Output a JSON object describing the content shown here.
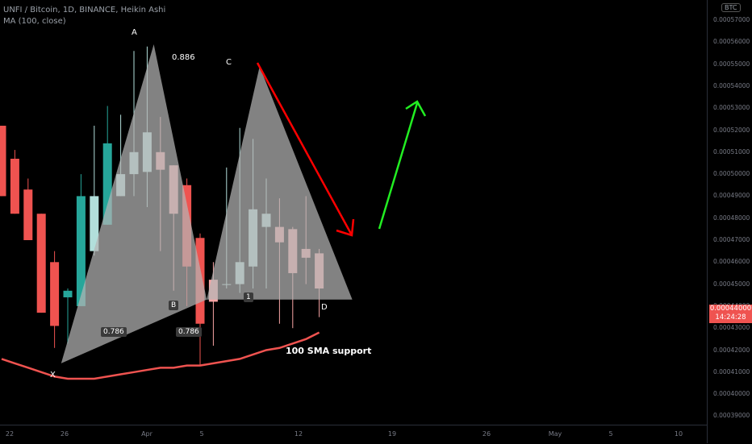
{
  "header": {
    "title": "UNFI / Bitcoin, 1D, BINANCE, Heikin Ashi",
    "indicator": "MA (100, close)"
  },
  "currency_badge": "BTC",
  "price_label": {
    "price": "0.00044000",
    "countdown": "14:24:28"
  },
  "annotations": {
    "A": "A",
    "B": "B",
    "C": "C",
    "D": "D",
    "X": "X",
    "ratio_886": "0.886",
    "ratio_786_xb": "0.786",
    "ratio_786_bd": "0.786",
    "point_1": "1",
    "sma_note": "100 SMA support"
  },
  "colors": {
    "background": "#000000",
    "candle_up": "#26a69a",
    "candle_up_light": "#b2dfdb",
    "candle_down": "#ef5350",
    "candle_down_light": "#f8a5a5",
    "pattern_fill": "#b4b4b4",
    "sma": "#ef5350",
    "arrow_down": "#ff0000",
    "arrow_up": "#22ee22"
  },
  "icons": [
    "arrow-down-icon",
    "arrow-up-icon"
  ],
  "chart_data": {
    "type": "candlestick",
    "style": "Heikin Ashi",
    "symbol": "UNFI / Bitcoin",
    "interval": "1D",
    "exchange": "BINANCE",
    "y_ticks": [
      "0.00057000",
      "0.00056000",
      "0.00055000",
      "0.00054000",
      "0.00053000",
      "0.00052000",
      "0.00051000",
      "0.00050000",
      "0.00049000",
      "0.00048000",
      "0.00047000",
      "0.00046000",
      "0.00045000",
      "0.00044000",
      "0.00043000",
      "0.00042000",
      "0.00041000",
      "0.00040000",
      "0.00039000"
    ],
    "x_ticks": [
      "22",
      "26",
      "Apr",
      "5",
      "12",
      "19",
      "26",
      "May",
      "5",
      "10"
    ],
    "ylim": [
      0.000387,
      0.000577
    ],
    "candles": [
      {
        "open": 0.000522,
        "high": 0.000522,
        "low": 0.00049,
        "close": 0.00049,
        "dir": "down"
      },
      {
        "open": 0.000507,
        "high": 0.000511,
        "low": 0.000482,
        "close": 0.000482,
        "dir": "down"
      },
      {
        "open": 0.000493,
        "high": 0.000498,
        "low": 0.00047,
        "close": 0.00047,
        "dir": "down"
      },
      {
        "open": 0.000482,
        "high": 0.000482,
        "low": 0.000437,
        "close": 0.000437,
        "dir": "down"
      },
      {
        "open": 0.00046,
        "high": 0.000465,
        "low": 0.000421,
        "close": 0.000431,
        "dir": "down"
      },
      {
        "open": 0.000444,
        "high": 0.000448,
        "low": 0.000423,
        "close": 0.000447,
        "dir": "up"
      },
      {
        "open": 0.00044,
        "high": 0.0005,
        "low": 0.00044,
        "close": 0.00049,
        "dir": "up"
      },
      {
        "open": 0.000465,
        "high": 0.000522,
        "low": 0.000463,
        "close": 0.00049,
        "dir": "up_light"
      },
      {
        "open": 0.000477,
        "high": 0.000531,
        "low": 0.000477,
        "close": 0.000514,
        "dir": "up"
      },
      {
        "open": 0.00049,
        "high": 0.000527,
        "low": 0.00049,
        "close": 0.0005,
        "dir": "up_light"
      },
      {
        "open": 0.0005,
        "high": 0.000556,
        "low": 0.00049,
        "close": 0.00051,
        "dir": "up_light"
      },
      {
        "open": 0.000501,
        "high": 0.000558,
        "low": 0.000485,
        "close": 0.000519,
        "dir": "up_light"
      },
      {
        "open": 0.00051,
        "high": 0.000526,
        "low": 0.000465,
        "close": 0.000502,
        "dir": "down_light"
      },
      {
        "open": 0.000504,
        "high": 0.000504,
        "low": 0.000447,
        "close": 0.000482,
        "dir": "down_light"
      },
      {
        "open": 0.000495,
        "high": 0.000498,
        "low": 0.00044,
        "close": 0.000458,
        "dir": "down"
      },
      {
        "open": 0.000471,
        "high": 0.000473,
        "low": 0.000413,
        "close": 0.000432,
        "dir": "down"
      },
      {
        "open": 0.000452,
        "high": 0.00046,
        "low": 0.000422,
        "close": 0.000442,
        "dir": "down_light"
      },
      {
        "open": 0.00045,
        "high": 0.000503,
        "low": 0.000448,
        "close": 0.00045,
        "dir": "up_light"
      },
      {
        "open": 0.00045,
        "high": 0.000521,
        "low": 0.000446,
        "close": 0.00046,
        "dir": "up_light"
      },
      {
        "open": 0.000458,
        "high": 0.000516,
        "low": 0.000448,
        "close": 0.000484,
        "dir": "up_light"
      },
      {
        "open": 0.000476,
        "high": 0.000498,
        "low": 0.000448,
        "close": 0.000482,
        "dir": "up_light"
      },
      {
        "open": 0.000476,
        "high": 0.000489,
        "low": 0.000432,
        "close": 0.000469,
        "dir": "down_light"
      },
      {
        "open": 0.000475,
        "high": 0.000476,
        "low": 0.00043,
        "close": 0.000455,
        "dir": "down_light"
      },
      {
        "open": 0.000466,
        "high": 0.00049,
        "low": 0.00045,
        "close": 0.000462,
        "dir": "down_light"
      },
      {
        "open": 0.000464,
        "high": 0.000466,
        "low": 0.000435,
        "close": 0.000448,
        "dir": "down_light"
      }
    ],
    "sma100": [
      0.000416,
      0.000414,
      0.000412,
      0.00041,
      0.000408,
      0.000407,
      0.000407,
      0.000407,
      0.000408,
      0.000409,
      0.00041,
      0.000411,
      0.000412,
      0.000412,
      0.000413,
      0.000413,
      0.000414,
      0.000415,
      0.000416,
      0.000418,
      0.00042,
      0.000421,
      0.000423,
      0.000425,
      0.000428
    ],
    "pattern": {
      "X": {
        "candle": 4.5,
        "price": 0.000414
      },
      "A": {
        "candle": 11.5,
        "price": 0.000559
      },
      "B": {
        "candle": 15.5,
        "price": 0.000443
      },
      "C": {
        "candle": 19.5,
        "price": 0.000549
      },
      "D": {
        "candle": 26.5,
        "price": 0.000443
      }
    },
    "current_price": 0.00044,
    "title": "UNFI / Bitcoin, 1D, BINANCE, Heikin Ashi"
  }
}
